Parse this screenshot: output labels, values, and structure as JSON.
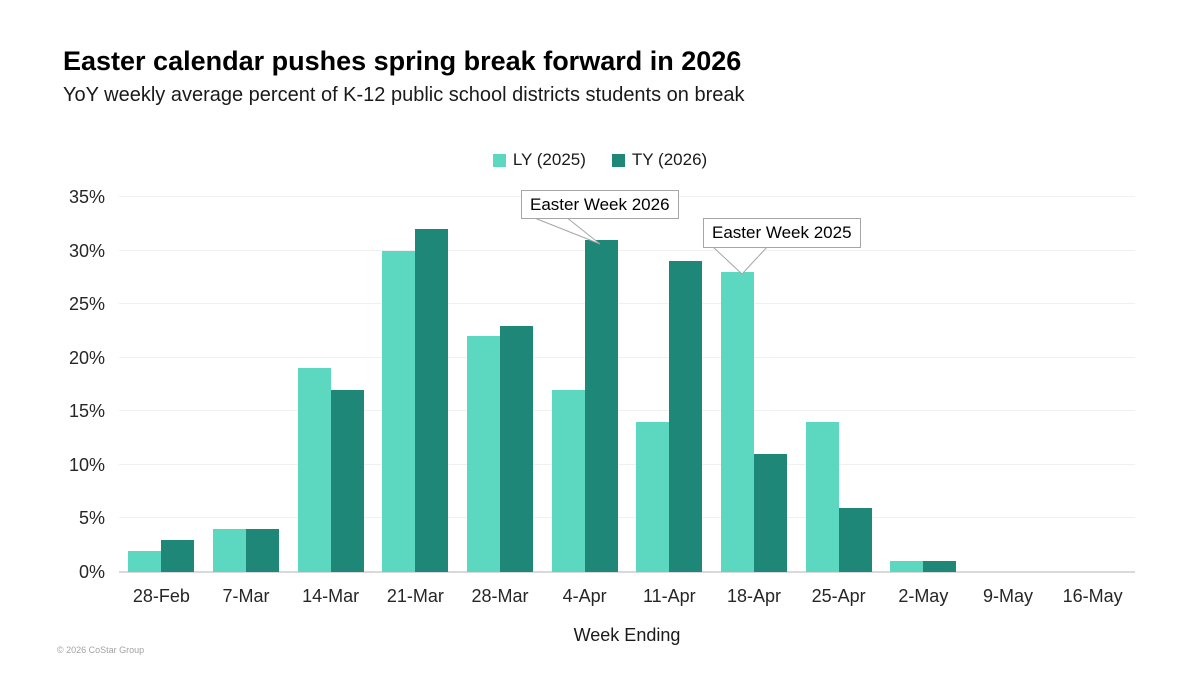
{
  "header": {
    "title": "Easter calendar pushes spring break forward in 2026",
    "subtitle": "YoY weekly average percent of K-12 public school districts students on break"
  },
  "footer": {
    "copyright": "© 2026 CoStar Group"
  },
  "colors": {
    "ly_bar": "#5bd8bf",
    "ty_bar": "#1f8777",
    "gridline": "#f0f0f0",
    "axis_line": "#d9d9d9",
    "callout_border": "#a6a6a6"
  },
  "chart_data": {
    "type": "bar",
    "title": "Easter calendar pushes spring break forward in 2026",
    "subtitle": "YoY weekly average percent of K-12 public school districts students on break",
    "categories": [
      "28-Feb",
      "7-Mar",
      "14-Mar",
      "21-Mar",
      "28-Mar",
      "4-Apr",
      "11-Apr",
      "18-Apr",
      "25-Apr",
      "2-May",
      "9-May",
      "16-May"
    ],
    "series": [
      {
        "name": "LY (2025)",
        "color": "#5bd8bf",
        "values": [
          2,
          4,
          19,
          30,
          22,
          17,
          14,
          28,
          14,
          1,
          0,
          0
        ]
      },
      {
        "name": "TY (2026)",
        "color": "#1f8777",
        "values": [
          3,
          4,
          17,
          32,
          23,
          31,
          29,
          11,
          6,
          1,
          0,
          0
        ]
      }
    ],
    "xlabel": "Week Ending",
    "ylabel": "",
    "ylim": [
      0,
      35
    ],
    "ytick_step": 5,
    "ytick_suffix": "%",
    "grid": true,
    "legend_position": "top-center",
    "annotations": [
      {
        "text": "Easter Week 2026",
        "series": "TY (2026)",
        "category": "4-Apr",
        "value": 31
      },
      {
        "text": "Easter Week 2025",
        "series": "LY (2025)",
        "category": "18-Apr",
        "value": 28
      }
    ]
  }
}
